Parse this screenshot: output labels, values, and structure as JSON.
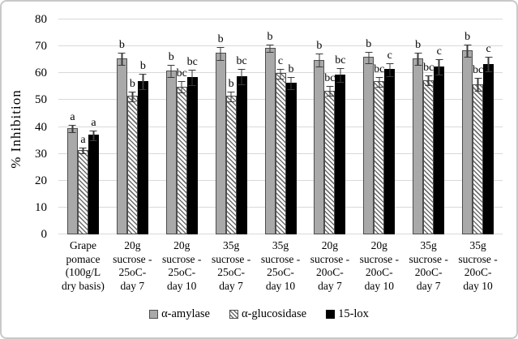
{
  "chart_data": {
    "type": "bar",
    "title": "",
    "xlabel": "",
    "ylabel": "% Inhibition",
    "ylim": [
      0,
      80
    ],
    "yticks": [
      0,
      10,
      20,
      30,
      40,
      50,
      60,
      70,
      80
    ],
    "grid": true,
    "legend_position": "bottom",
    "categories": [
      "Grape\npomace\n(100g/L\ndry basis)",
      "20g\nsucrose -\n25oC-\nday 7",
      "20g\nsucrose -\n25oC-\nday 10",
      "35g\nsucrose -\n25oC-\nday 7",
      "35g\nsucrose -\n25oC-\nday 10",
      "20g\nsucrose -\n20oC-\nday 7",
      "20g\nsucrose -\n20oC-\nday 10",
      "35g\nsucrose -\n20oC-\nday 7",
      "35g\nsucrose -\n20oC-\nday 10"
    ],
    "series": [
      {
        "name": "α-amylase",
        "swatch": "gray",
        "fill_color": "#a9a9a9",
        "values": [
          39.5,
          65.5,
          61.0,
          67.5,
          69.5,
          65.0,
          66.0,
          65.5,
          68.5
        ],
        "errors": [
          1.5,
          2.5,
          2.3,
          2.5,
          1.5,
          2.5,
          2.3,
          2.3,
          2.5
        ],
        "letters": [
          "a",
          "b",
          "b",
          "b",
          "b",
          "b",
          "b",
          "b",
          "b"
        ]
      },
      {
        "name": "α-glucosidase",
        "swatch": "hatch",
        "fill_color": "#ffffff",
        "values": [
          31.5,
          51.5,
          55.0,
          51.5,
          60.0,
          53.5,
          57.0,
          57.5,
          56.0
        ],
        "errors": [
          1.2,
          2.0,
          2.3,
          2.0,
          2.0,
          2.0,
          2.0,
          2.0,
          2.5
        ],
        "letters": [
          "a",
          "b",
          "bc",
          "b",
          "c",
          "bc",
          "bc",
          "bc",
          "bc"
        ]
      },
      {
        "name": "15-lox",
        "swatch": "black",
        "fill_color": "#000000",
        "values": [
          37.0,
          57.0,
          58.5,
          59.0,
          56.5,
          59.5,
          61.5,
          62.5,
          63.5
        ],
        "errors": [
          2.0,
          3.0,
          3.0,
          3.0,
          2.5,
          2.8,
          2.5,
          3.0,
          2.8
        ],
        "letters": [
          "a",
          "b",
          "bc",
          "bc",
          "b",
          "bc",
          "c",
          "c",
          "c"
        ]
      }
    ],
    "colors": {
      "gridline": "#d9d9d9",
      "bar_border": "#4d4d4d",
      "error_bar": "#3a3a3a",
      "figure_border": "#c9c9c9"
    }
  }
}
